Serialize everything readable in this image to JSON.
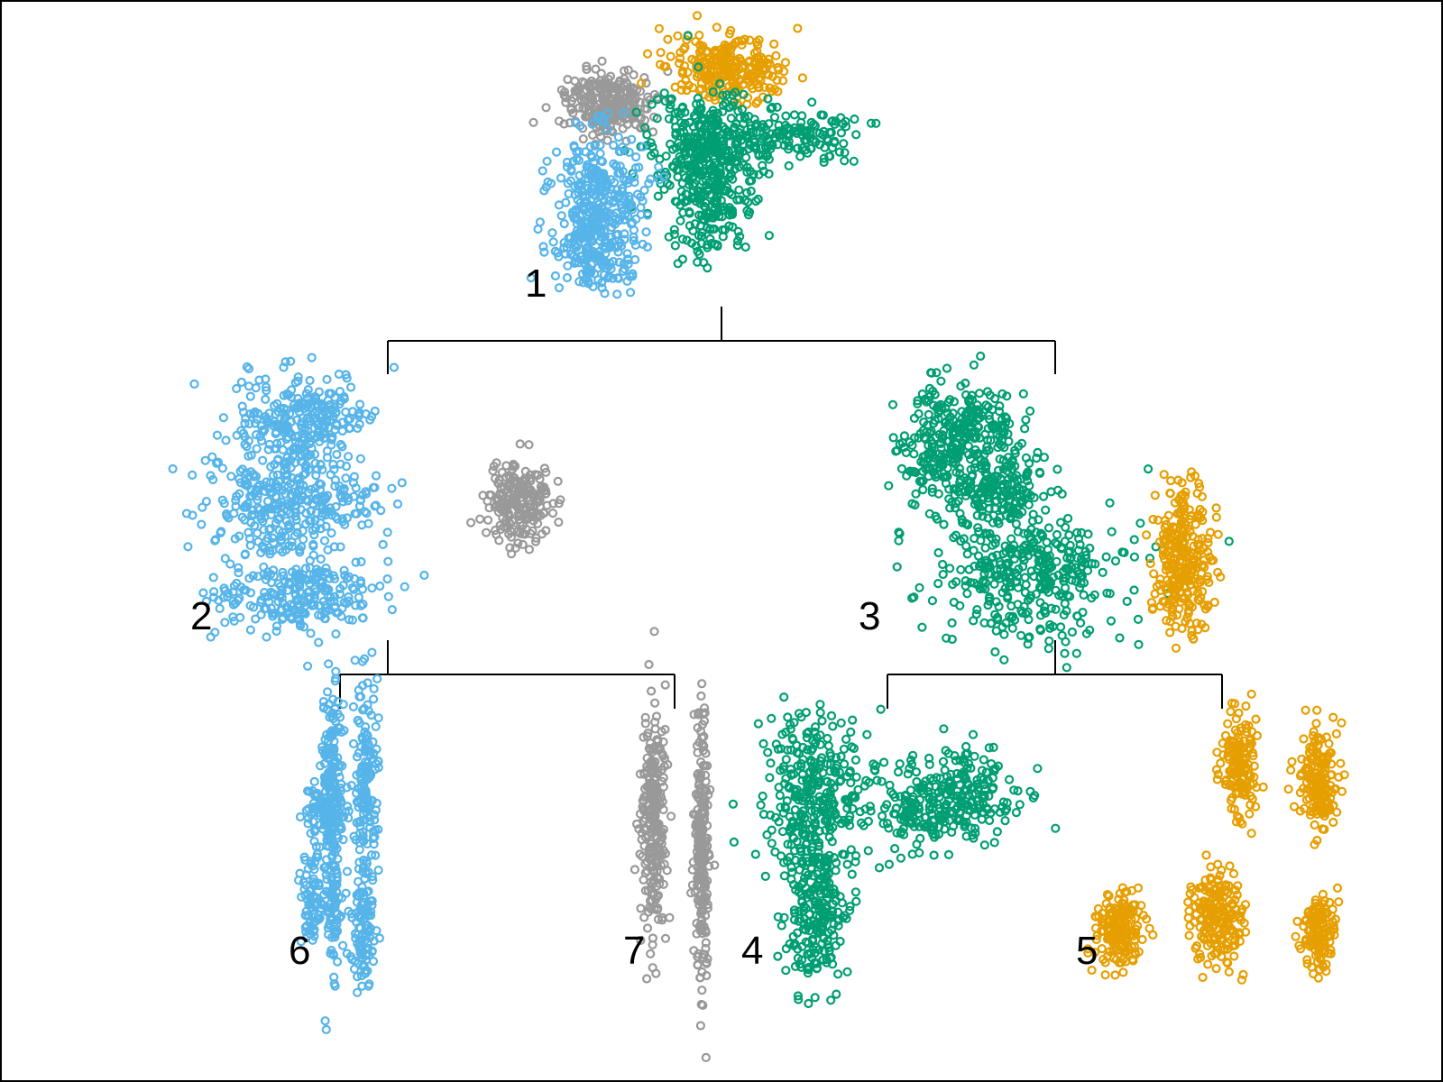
{
  "colors": {
    "blue": "#56B4E9",
    "grey": "#999999",
    "green": "#009E73",
    "orange": "#E69F00"
  },
  "nodes": [
    {
      "id": "1",
      "label": "1",
      "colors": [
        "blue",
        "grey",
        "green",
        "orange"
      ]
    },
    {
      "id": "2",
      "label": "2",
      "colors": [
        "blue",
        "grey"
      ]
    },
    {
      "id": "3",
      "label": "3",
      "colors": [
        "green",
        "orange"
      ]
    },
    {
      "id": "6",
      "label": "6",
      "colors": [
        "blue"
      ]
    },
    {
      "id": "7",
      "label": "7",
      "colors": [
        "grey"
      ]
    },
    {
      "id": "4",
      "label": "4",
      "colors": [
        "green"
      ]
    },
    {
      "id": "5",
      "label": "5",
      "colors": [
        "orange"
      ]
    }
  ],
  "edges": [
    {
      "from": "1",
      "to": "2"
    },
    {
      "from": "1",
      "to": "3"
    },
    {
      "from": "2",
      "to": "6"
    },
    {
      "from": "2",
      "to": "7"
    },
    {
      "from": "3",
      "to": "4"
    },
    {
      "from": "3",
      "to": "5"
    }
  ]
}
